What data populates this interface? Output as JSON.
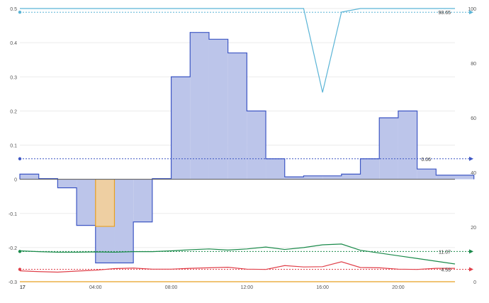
{
  "chart_data": {
    "type": "bar",
    "x_tick_labels": [
      "17",
      "04:00",
      "08:00",
      "12:00",
      "16:00",
      "20:00"
    ],
    "x_tick_hours": [
      0,
      4,
      8,
      12,
      16,
      20
    ],
    "x_range_hours": [
      0,
      23
    ],
    "left_axis": {
      "range": [
        -0.3,
        0.5
      ],
      "ticks": [
        -0.3,
        -0.2,
        -0.1,
        0,
        0.1,
        0.2,
        0.3,
        0.4,
        0.5
      ],
      "tick_labels": [
        "-0.3",
        "-0.2",
        "-0.1",
        "0",
        "0.1",
        "0.2",
        "0.3",
        "0.4",
        "0.5"
      ]
    },
    "right_axis": {
      "range": [
        0,
        100
      ],
      "ticks": [
        0,
        20,
        40,
        60,
        80,
        100
      ],
      "tick_labels": [
        "0",
        "20",
        "40",
        "60",
        "80",
        "100"
      ]
    },
    "series": [
      {
        "kind": "step-area",
        "axis": "left",
        "color": "#3d56c4",
        "fill": "#bcc5ea",
        "hours": [
          0,
          1,
          2,
          3,
          4,
          5,
          6,
          7,
          8,
          9,
          10,
          11,
          12,
          13,
          14,
          15,
          16,
          17,
          18,
          19,
          20,
          21,
          22,
          23
        ],
        "values": [
          0.015,
          0.002,
          -0.025,
          -0.135,
          -0.245,
          -0.245,
          -0.125,
          0.002,
          0.3,
          0.43,
          0.41,
          0.37,
          0.2,
          0.06,
          0.007,
          0.01,
          0.01,
          0.015,
          0.06,
          0.18,
          0.2,
          0.03,
          0.012,
          0.012
        ]
      },
      {
        "kind": "step-area",
        "axis": "left",
        "color": "#e8a020",
        "fill": "#ffd28a",
        "hours": [
          4,
          5
        ],
        "values": [
          -0.138
        ]
      },
      {
        "kind": "line",
        "axis": "right",
        "color": "#5ab4d6",
        "points": [
          [
            0,
            100
          ],
          [
            8,
            100
          ],
          [
            9,
            100
          ],
          [
            12,
            100
          ],
          [
            15,
            100
          ],
          [
            16,
            69.3
          ],
          [
            17,
            98.7
          ],
          [
            18,
            100
          ],
          [
            23,
            100
          ]
        ],
        "avg": 98.65,
        "avg_label": "98.65"
      },
      {
        "kind": "line",
        "axis": "right",
        "color": "#1a8a4a",
        "points": [
          [
            0,
            11.3
          ],
          [
            1,
            11.0
          ],
          [
            2,
            10.8
          ],
          [
            3,
            10.8
          ],
          [
            4,
            10.9
          ],
          [
            5,
            10.8
          ],
          [
            6,
            11.0
          ],
          [
            7,
            11.0
          ],
          [
            8,
            11.3
          ],
          [
            9,
            11.7
          ],
          [
            10,
            12.0
          ],
          [
            11,
            11.6
          ],
          [
            12,
            12.0
          ],
          [
            13,
            12.7
          ],
          [
            14,
            11.8
          ],
          [
            15,
            12.5
          ],
          [
            16,
            13.5
          ],
          [
            17,
            13.8
          ],
          [
            18,
            11.5
          ],
          [
            19,
            10.5
          ],
          [
            20,
            9.5
          ],
          [
            21,
            8.5
          ],
          [
            22,
            7.5
          ],
          [
            23,
            6.5
          ]
        ],
        "avg": 11.07,
        "avg_label": "11.07"
      },
      {
        "kind": "line",
        "axis": "right",
        "color": "#e0404a",
        "points": [
          [
            0,
            4.0
          ],
          [
            1,
            3.7
          ],
          [
            2,
            3.5
          ],
          [
            3,
            3.9
          ],
          [
            4,
            4.2
          ],
          [
            5,
            4.8
          ],
          [
            6,
            5.0
          ],
          [
            7,
            4.6
          ],
          [
            8,
            4.6
          ],
          [
            9,
            4.9
          ],
          [
            10,
            5.1
          ],
          [
            11,
            5.3
          ],
          [
            12,
            4.6
          ],
          [
            13,
            4.5
          ],
          [
            14,
            5.9
          ],
          [
            15,
            5.4
          ],
          [
            16,
            5.5
          ],
          [
            17,
            7.3
          ],
          [
            18,
            5.2
          ],
          [
            19,
            5.1
          ],
          [
            20,
            4.6
          ],
          [
            21,
            4.5
          ],
          [
            22,
            4.9
          ],
          [
            23,
            4.9
          ]
        ],
        "avg": 4.53,
        "avg_label": "4.53"
      },
      {
        "kind": "line",
        "axis": "right",
        "color": "#e8a020",
        "points": [
          [
            0,
            0
          ],
          [
            23,
            0
          ]
        ]
      }
    ],
    "left_reference": {
      "value": 0.06,
      "label": "0.06",
      "color": "#3d56c4"
    },
    "grid": true
  }
}
